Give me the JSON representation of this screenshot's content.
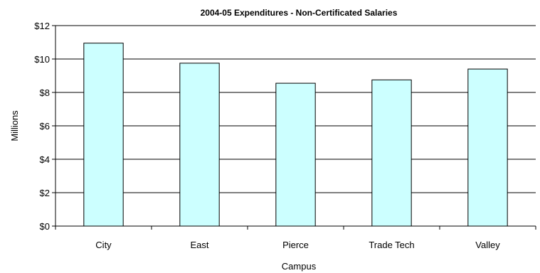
{
  "chart_data": {
    "type": "bar",
    "title": "2004-05 Expenditures - Non-Certificated Salaries",
    "xlabel": "Campus",
    "ylabel": "Millions",
    "categories": [
      "City",
      "East",
      "Pierce",
      "Trade Tech",
      "Valley"
    ],
    "values": [
      10.95,
      9.75,
      8.55,
      8.75,
      9.4
    ],
    "ylim": [
      0,
      12
    ],
    "yticks": [
      0,
      2,
      4,
      6,
      8,
      10,
      12
    ],
    "ytick_labels": [
      "$0",
      "$2",
      "$4",
      "$6",
      "$8",
      "$10",
      "$12"
    ],
    "grid": true,
    "legend": false,
    "colors": {
      "bar_fill": "#ccffff",
      "bar_stroke": "#000000",
      "grid": "#000000"
    }
  }
}
